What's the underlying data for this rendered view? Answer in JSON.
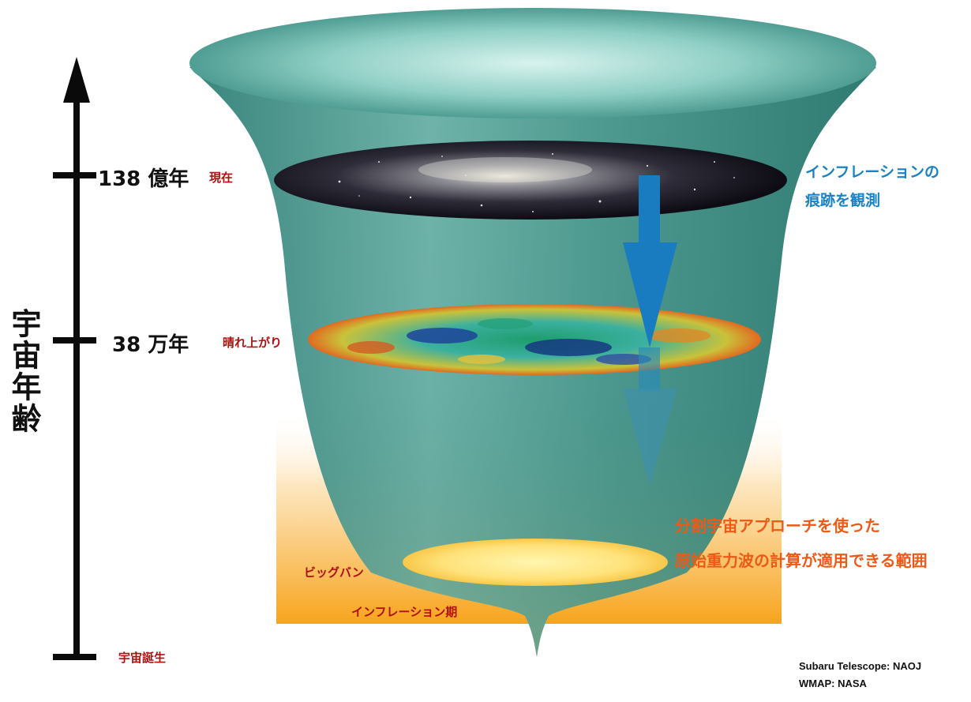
{
  "axis": {
    "title": "宇宙年齢",
    "ticks": [
      {
        "value": "138 億年",
        "note": "現在"
      },
      {
        "value": "38 万年",
        "note": "晴れ上がり"
      },
      {
        "value": "",
        "note": "宇宙誕生"
      }
    ]
  },
  "labels": {
    "big_bang": "ビッグバン",
    "inflation_era": "インフレーション期",
    "observe_line1": "インフレーションの",
    "observe_line2": "痕跡を観測",
    "range_line1": "分割宇宙アプローチを使った",
    "range_line2": "原始重力波の計算が適用できる範囲"
  },
  "credits": {
    "subaru": "Subaru Telescope: NAOJ",
    "wmap": "WMAP: NASA"
  },
  "colors": {
    "funnel": "#3f8f86",
    "funnel_light": "#bfe8e2",
    "arrow_blue": "#1a7cc0",
    "range_orange": "#f7a41c",
    "text_red": "#b01010",
    "text_orange": "#ec5a16",
    "text_blue": "#1a82c4"
  }
}
